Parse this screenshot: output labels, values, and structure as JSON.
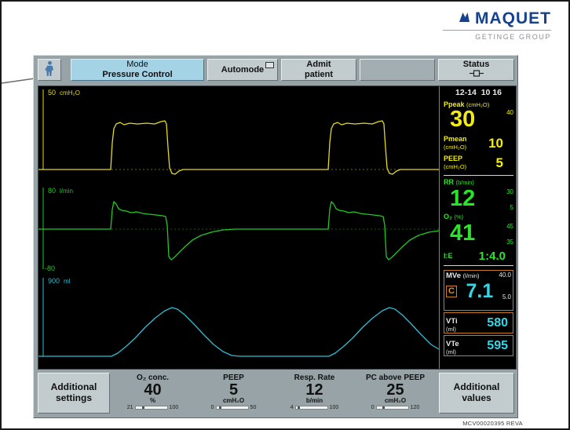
{
  "logo": {
    "name": "MAQUET",
    "group": "GETINGE GROUP",
    "brand_color": "#16418c"
  },
  "toolbar": {
    "mode_title": "Mode",
    "mode_value": "Pressure Control",
    "automode": "Automode",
    "admit_line1": "Admit",
    "admit_line2": "patient",
    "status": "Status"
  },
  "screen": {
    "datetime": "12-14  10 16",
    "channels": [
      {
        "id": "pressure",
        "scale": "50",
        "unit": "cmH₂O",
        "color": "#e6da1e",
        "dashed": true,
        "baseline": 106,
        "axis_end": 106,
        "points": [
          [
            0,
            106
          ],
          [
            92,
            106
          ],
          [
            94,
            72
          ],
          [
            96,
            54
          ],
          [
            99,
            48
          ],
          [
            104,
            46
          ],
          [
            109,
            49
          ],
          [
            116,
            47
          ],
          [
            126,
            48
          ],
          [
            138,
            47
          ],
          [
            148,
            48
          ],
          [
            156,
            45
          ],
          [
            161,
            44
          ],
          [
            163,
            48
          ],
          [
            165,
            78
          ],
          [
            167,
            104
          ],
          [
            170,
            111
          ],
          [
            174,
            112
          ],
          [
            179,
            108
          ],
          [
            184,
            106
          ],
          [
            240,
            106
          ],
          [
            369,
            106
          ],
          [
            371,
            72
          ],
          [
            373,
            54
          ],
          [
            376,
            48
          ],
          [
            381,
            46
          ],
          [
            386,
            49
          ],
          [
            393,
            47
          ],
          [
            403,
            48
          ],
          [
            415,
            47
          ],
          [
            425,
            48
          ],
          [
            433,
            45
          ],
          [
            438,
            44
          ],
          [
            440,
            48
          ],
          [
            442,
            78
          ],
          [
            444,
            104
          ],
          [
            447,
            111
          ],
          [
            451,
            112
          ],
          [
            456,
            108
          ],
          [
            461,
            106
          ],
          [
            510,
            106
          ]
        ]
      },
      {
        "id": "flow",
        "scale": "80",
        "unit": "l/min",
        "scale_low": "-80",
        "color": "#22c822",
        "dashed": true,
        "baseline": 57,
        "axis_end": 108,
        "points": [
          [
            0,
            57
          ],
          [
            92,
            57
          ],
          [
            94,
            32
          ],
          [
            96,
            22
          ],
          [
            99,
            25
          ],
          [
            102,
            31
          ],
          [
            106,
            33
          ],
          [
            112,
            34
          ],
          [
            118,
            36
          ],
          [
            125,
            35
          ],
          [
            133,
            37
          ],
          [
            141,
            38
          ],
          [
            150,
            39
          ],
          [
            158,
            40
          ],
          [
            162,
            41
          ],
          [
            164,
            52
          ],
          [
            166,
            92
          ],
          [
            169,
            96
          ],
          [
            173,
            93
          ],
          [
            179,
            87
          ],
          [
            187,
            79
          ],
          [
            196,
            71
          ],
          [
            207,
            65
          ],
          [
            220,
            61
          ],
          [
            235,
            58
          ],
          [
            250,
            57
          ],
          [
            369,
            57
          ],
          [
            371,
            32
          ],
          [
            373,
            22
          ],
          [
            376,
            25
          ],
          [
            379,
            31
          ],
          [
            383,
            33
          ],
          [
            389,
            34
          ],
          [
            395,
            36
          ],
          [
            402,
            35
          ],
          [
            410,
            37
          ],
          [
            418,
            38
          ],
          [
            427,
            39
          ],
          [
            435,
            40
          ],
          [
            439,
            41
          ],
          [
            441,
            52
          ],
          [
            443,
            92
          ],
          [
            446,
            96
          ],
          [
            450,
            93
          ],
          [
            456,
            87
          ],
          [
            464,
            79
          ],
          [
            473,
            71
          ],
          [
            484,
            65
          ],
          [
            497,
            61
          ],
          [
            510,
            59
          ]
        ]
      },
      {
        "id": "volume",
        "scale": "900",
        "unit": "ml",
        "color": "#32bcd2",
        "dashed": false,
        "baseline": 104,
        "axis_end": 104,
        "points": [
          [
            0,
            104
          ],
          [
            93,
            104
          ],
          [
            101,
            100
          ],
          [
            111,
            92
          ],
          [
            123,
            81
          ],
          [
            136,
            67
          ],
          [
            149,
            55
          ],
          [
            161,
            46
          ],
          [
            170,
            42
          ],
          [
            177,
            44
          ],
          [
            186,
            51
          ],
          [
            197,
            62
          ],
          [
            210,
            76
          ],
          [
            223,
            89
          ],
          [
            235,
            98
          ],
          [
            246,
            103
          ],
          [
            256,
            104
          ],
          [
            370,
            104
          ],
          [
            378,
            100
          ],
          [
            388,
            92
          ],
          [
            400,
            81
          ],
          [
            413,
            67
          ],
          [
            426,
            55
          ],
          [
            438,
            46
          ],
          [
            447,
            42
          ],
          [
            454,
            44
          ],
          [
            463,
            51
          ],
          [
            474,
            62
          ],
          [
            487,
            76
          ],
          [
            500,
            89
          ],
          [
            510,
            95
          ]
        ]
      }
    ],
    "vitals": {
      "ppeak": {
        "label": "Ppeak",
        "unit": "(cmH₂O)",
        "value": "30",
        "limit_high": "40"
      },
      "pmean": {
        "label": "Pmean",
        "unit": "(cmH₂O)",
        "value": "10"
      },
      "peep": {
        "label": "PEEP",
        "unit": "(cmH₂O)",
        "value": "5"
      },
      "rr": {
        "label": "RR",
        "unit": "(b/min)",
        "value": "12",
        "limit_high": "30",
        "limit_low": "5"
      },
      "o2": {
        "label": "O₂",
        "unit": "(%)",
        "value": "41",
        "limit_high": "45",
        "limit_low": "35"
      },
      "ie": {
        "label": "I:E",
        "value": "1:4.0"
      },
      "mve": {
        "label": "MVe",
        "unit": "(l/min)",
        "flag": "C",
        "value": "7.1",
        "limit_high": "40.0",
        "limit_low": "5.0"
      },
      "vti": {
        "label": "VTi",
        "unit": "(ml)",
        "value": "580"
      },
      "vte": {
        "label": "VTe",
        "unit": "(ml)",
        "value": "595"
      }
    }
  },
  "bottom": {
    "left_button_line1": "Additional",
    "left_button_line2": "settings",
    "right_button_line1": "Additional",
    "right_button_line2": "values",
    "params": [
      {
        "label": "O₂ conc.",
        "value": "40",
        "unit": "%",
        "min": "21",
        "max": "100",
        "marker_pct": 24
      },
      {
        "label": "PEEP",
        "value": "5",
        "unit": "cmH₂O",
        "min": "0",
        "max": "50",
        "marker_pct": 10
      },
      {
        "label": "Resp. Rate",
        "value": "12",
        "unit": "b/min",
        "min": "4",
        "max": "100",
        "marker_pct": 8
      },
      {
        "label": "PC above PEEP",
        "value": "25",
        "unit": "cmH₂O",
        "min": "0",
        "max": "120",
        "marker_pct": 21
      }
    ],
    "footnote": "MCV00020395 REVA"
  }
}
